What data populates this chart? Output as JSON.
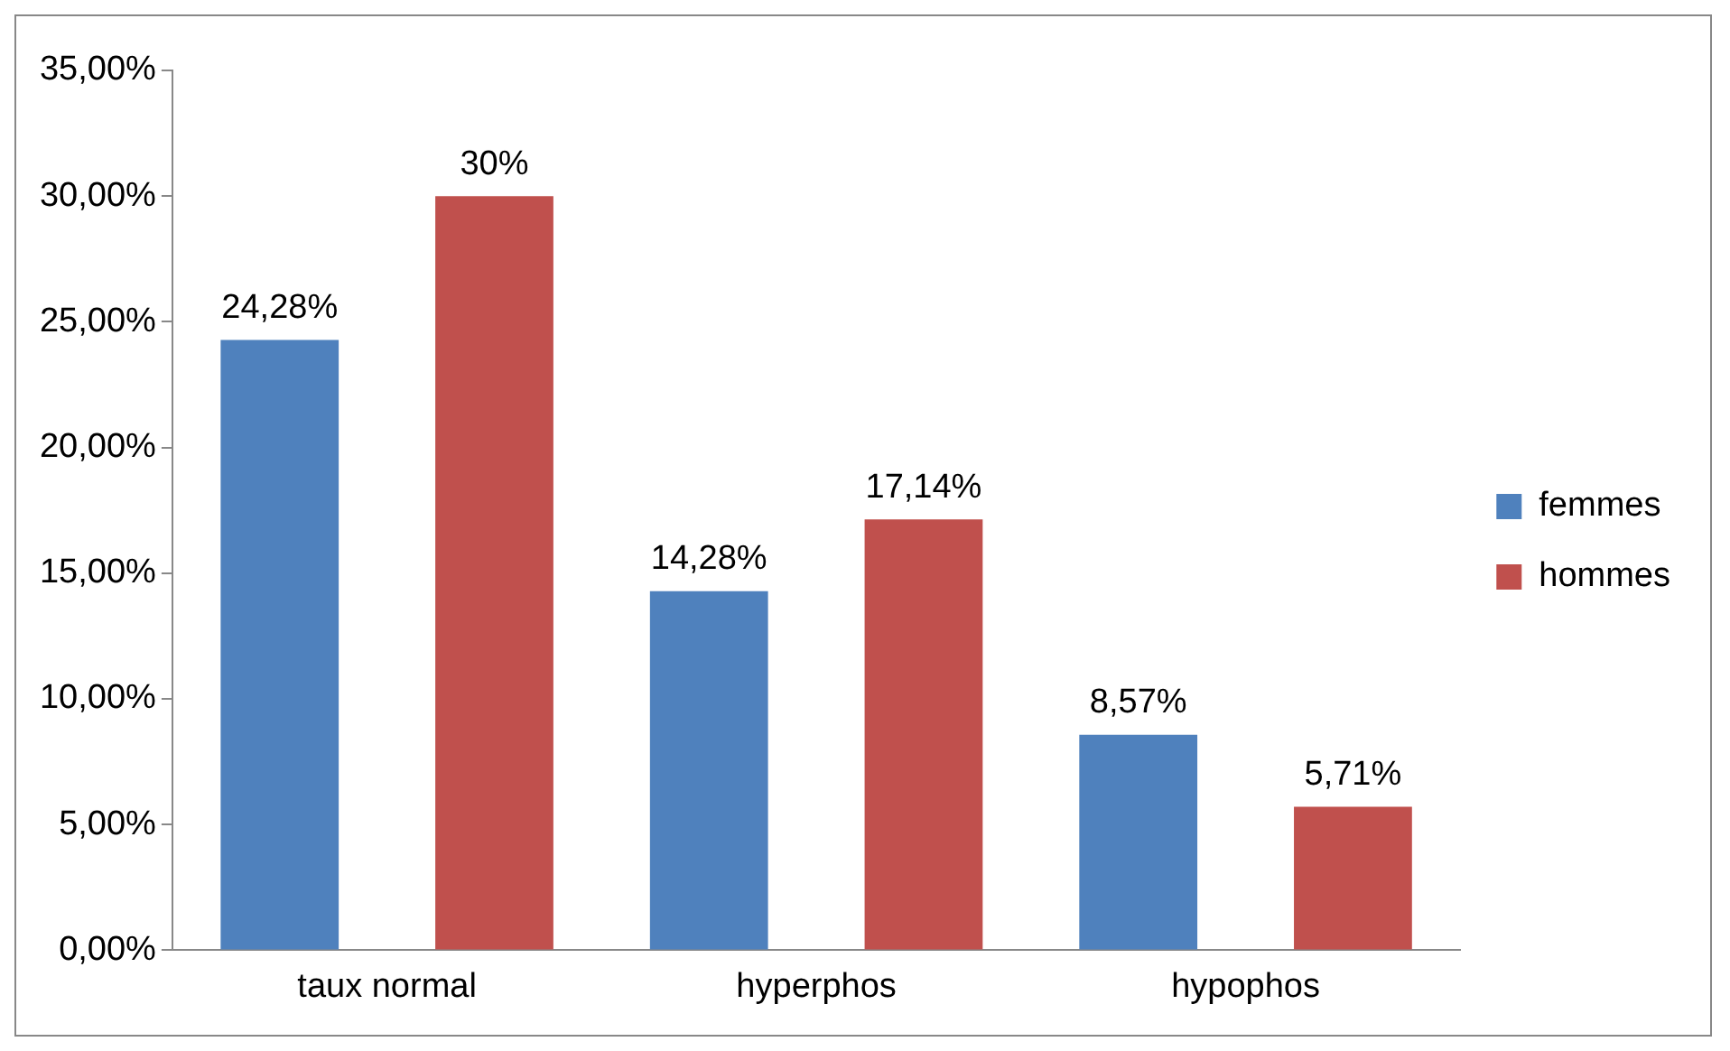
{
  "chart_data": {
    "type": "bar",
    "categories": [
      "taux normal",
      "hyperphos",
      "hypophos"
    ],
    "series": [
      {
        "name": "femmes",
        "color": "#4f81bd",
        "values": [
          24.28,
          14.28,
          8.57
        ],
        "value_labels": [
          "24,28%",
          "14,28%",
          "8,57%"
        ]
      },
      {
        "name": "hommes",
        "color": "#c0504d",
        "values": [
          30,
          17.14,
          5.71
        ],
        "value_labels": [
          "30%",
          "17,14%",
          "5,71%"
        ]
      }
    ],
    "ylim": [
      0,
      35
    ],
    "yticks": [
      {
        "value": 0,
        "label": "0,00%"
      },
      {
        "value": 5,
        "label": "5,00%"
      },
      {
        "value": 10,
        "label": "10,00%"
      },
      {
        "value": 15,
        "label": "15,00%"
      },
      {
        "value": 20,
        "label": "20,00%"
      },
      {
        "value": 25,
        "label": "25,00%"
      },
      {
        "value": 30,
        "label": "30,00%"
      },
      {
        "value": 35,
        "label": "35,00%"
      }
    ],
    "grid": false,
    "legend": "right"
  }
}
